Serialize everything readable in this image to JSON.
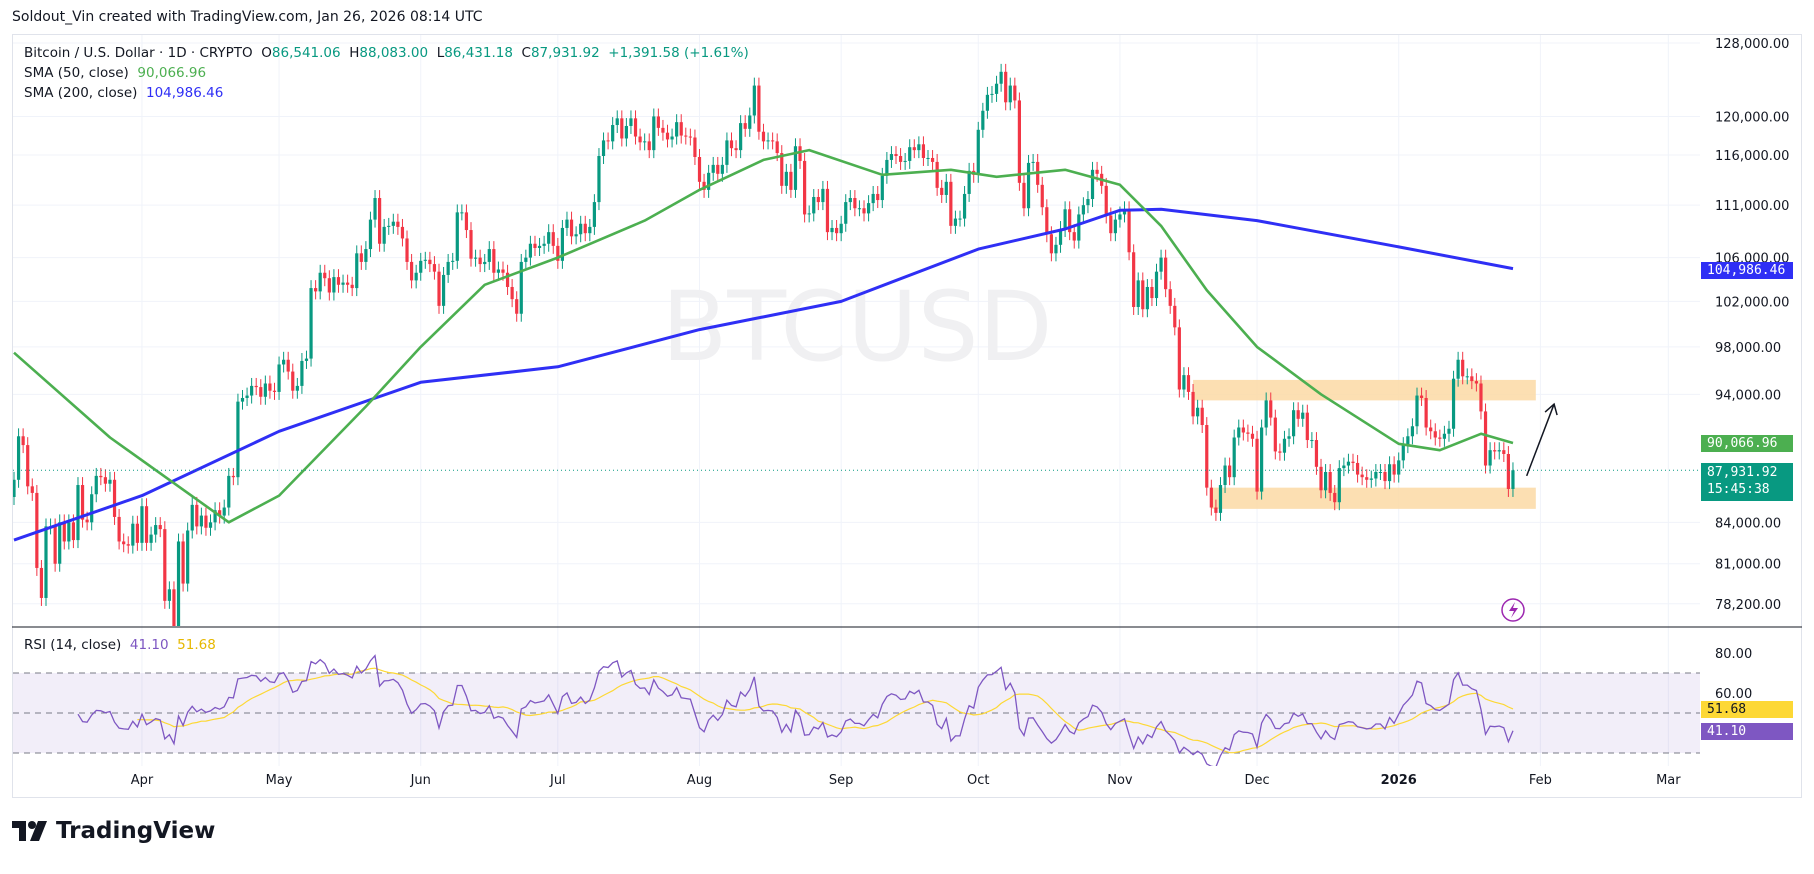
{
  "credit": "Soldout_Vin created with TradingView.com, Jan 26, 2026 08:14 UTC",
  "legend": {
    "symbol": "Bitcoin / U.S. Dollar · 1D · CRYPTO",
    "o_label": "O",
    "o": "86,541.06",
    "h_label": "H",
    "h": "88,083.00",
    "l_label": "L",
    "l": "86,431.18",
    "c_label": "C",
    "c": "87,931.92",
    "change": "+1,391.58 (+1.61%)",
    "sma50_label": "SMA (50, close)",
    "sma50": "90,066.96",
    "sma200_label": "SMA (200, close)",
    "sma200": "104,986.46",
    "rsi_label": "RSI (14, close)",
    "rsi": "41.10",
    "rsi_ma": "51.68"
  },
  "watermark": "BTCUSD",
  "tags": {
    "sma200": "104,986.46",
    "sma50": "90,066.96",
    "last_price": "87,931.92",
    "countdown": "15:45:38",
    "rsi_ma": "51.68",
    "rsi": "41.10"
  },
  "colors": {
    "up": "#089981",
    "down": "#f23645",
    "sma50": "#4caf50",
    "sma200": "#2f2ff5",
    "rsi": "#7e57c2",
    "rsi_ma": "#fdd835",
    "zone": "#fcd9a5"
  },
  "logo": "TradingView",
  "chart_data": {
    "type": "candlestick",
    "scale": "log",
    "start_date": "2025-03-04",
    "ylim": [
      78200,
      128000
    ],
    "price_ticks": [
      "128,000.00",
      "120,000.00",
      "116,000.00",
      "111,000.00",
      "106,000.00",
      "102,000.00",
      "98,000.00",
      "94,000.00",
      "84,000.00",
      "81,000.00",
      "78,200.00"
    ],
    "rsi_ticks": [
      "80.00",
      "60.00"
    ],
    "rsi_bands": [
      30,
      50,
      70
    ],
    "time_axis": [
      {
        "label": "Apr",
        "date": "2025-04-01"
      },
      {
        "label": "May",
        "date": "2025-05-01"
      },
      {
        "label": "Jun",
        "date": "2025-06-01"
      },
      {
        "label": "Jul",
        "date": "2025-07-01"
      },
      {
        "label": "Aug",
        "date": "2025-08-01"
      },
      {
        "label": "Sep",
        "date": "2025-09-01"
      },
      {
        "label": "Oct",
        "date": "2025-10-01"
      },
      {
        "label": "Nov",
        "date": "2025-11-01"
      },
      {
        "label": "Dec",
        "date": "2025-12-01"
      },
      {
        "label": "2026",
        "date": "2026-01-01"
      },
      {
        "label": "Feb",
        "date": "2026-02-01"
      },
      {
        "label": "Mar",
        "date": "2026-03-01"
      }
    ],
    "close_k": [
      87.2,
      90.6,
      89.9,
      86.7,
      86.2,
      80.7,
      78.6,
      83.7,
      83.7,
      81.0,
      84.0,
      82.6,
      84.0,
      82.7,
      86.8,
      84.2,
      84.0,
      86.1,
      87.5,
      87.4,
      86.9,
      87.2,
      84.4,
      82.6,
      82.4,
      82.3,
      83.9,
      82.5,
      85.2,
      82.5,
      83.1,
      83.8,
      83.5,
      78.4,
      79.2,
      76.3,
      82.6,
      79.6,
      83.4,
      85.3,
      83.7,
      84.5,
      83.6,
      84.0,
      84.9,
      84.5,
      85.1,
      87.5,
      87.4,
      93.4,
      93.7,
      93.9,
      94.7,
      94.6,
      93.8,
      94.9,
      94.3,
      94.2,
      96.5,
      96.9,
      95.9,
      94.3,
      94.7,
      96.8,
      97.0,
      103.2,
      102.9,
      104.6,
      104.1,
      102.8,
      104.2,
      103.5,
      103.7,
      103.5,
      103.2,
      106.4,
      105.6,
      106.8,
      109.6,
      111.7,
      107.3,
      108.9,
      109.0,
      109.4,
      108.9,
      107.8,
      105.6,
      103.9,
      104.6,
      105.7,
      105.8,
      105.4,
      104.7,
      101.6,
      104.4,
      105.6,
      105.7,
      110.3,
      110.3,
      108.6,
      105.9,
      106.0,
      105.4,
      105.6,
      106.8,
      104.6,
      104.9,
      104.6,
      103.3,
      102.2,
      100.9,
      105.6,
      106.0,
      107.3,
      106.9,
      107.1,
      107.3,
      108.4,
      107.1,
      105.7,
      108.8,
      109.6,
      108.0,
      108.2,
      109.2,
      108.3,
      108.9,
      111.3,
      115.9,
      117.5,
      117.4,
      119.1,
      119.8,
      117.7,
      119.0,
      119.8,
      117.9,
      117.3,
      117.4,
      116.5,
      120.0,
      118.8,
      118.3,
      117.6,
      117.9,
      119.4,
      118.0,
      117.9,
      117.8,
      115.8,
      113.3,
      112.5,
      114.2,
      115.0,
      114.1,
      115.0,
      117.5,
      116.7,
      116.5,
      119.3,
      118.7,
      120.1,
      123.3,
      118.4,
      117.4,
      117.5,
      117.4,
      116.2,
      112.9,
      114.3,
      112.5,
      116.9,
      115.4,
      110.1,
      110.2,
      111.8,
      111.3,
      112.6,
      108.4,
      108.8,
      108.3,
      109.2,
      111.3,
      111.7,
      110.7,
      110.7,
      110.2,
      111.2,
      112.1,
      111.5,
      113.9,
      115.5,
      116.1,
      115.9,
      115.3,
      115.4,
      116.8,
      116.5,
      117.1,
      115.7,
      115.7,
      115.3,
      112.7,
      112.0,
      113.3,
      109.0,
      109.7,
      109.7,
      112.1,
      114.4,
      114.0,
      118.6,
      120.6,
      122.3,
      122.4,
      123.5,
      124.8,
      121.5,
      123.3,
      121.7,
      113.2,
      110.7,
      115.2,
      115.3,
      113.0,
      110.8,
      108.2,
      106.4,
      107.2,
      108.7,
      110.6,
      108.4,
      107.6,
      110.1,
      111.0,
      111.6,
      114.5,
      114.1,
      112.9,
      110.0,
      108.3,
      109.6,
      110.1,
      110.6,
      106.5,
      101.5,
      103.9,
      101.3,
      103.3,
      102.3,
      104.7,
      106.0,
      103.1,
      101.6,
      99.7,
      94.4,
      95.6,
      94.2,
      92.2,
      92.9,
      91.5,
      86.6,
      85.1,
      84.7,
      86.8,
      88.3,
      87.4,
      90.5,
      91.3,
      90.9,
      90.8,
      90.4,
      86.3,
      91.3,
      93.5,
      92.1,
      89.4,
      89.3,
      90.4,
      90.6,
      92.7,
      92.0,
      92.5,
      90.3,
      90.3,
      88.2,
      86.4,
      87.8,
      86.2,
      85.5,
      88.1,
      88.3,
      88.6,
      88.5,
      87.6,
      87.4,
      87.2,
      87.3,
      87.8,
      87.8,
      87.1,
      88.4,
      87.6,
      88.7,
      89.9,
      90.6,
      91.4,
      93.9,
      93.7,
      91.3,
      91.0,
      90.5,
      90.4,
      90.8,
      91.2,
      95.3,
      96.9,
      95.5,
      95.5,
      95.1,
      94.9,
      92.6,
      88.3,
      89.5,
      89.4,
      89.5,
      89.2,
      86.5,
      87.932
    ],
    "sma50": [
      [
        "2025-03-04",
        97.5
      ],
      [
        "2025-03-25",
        90.5
      ],
      [
        "2025-04-20",
        84.0
      ],
      [
        "2025-05-01",
        86.0
      ],
      [
        "2025-05-20",
        93.0
      ],
      [
        "2025-06-01",
        98.0
      ],
      [
        "2025-06-15",
        103.5
      ],
      [
        "2025-07-01",
        106.0
      ],
      [
        "2025-07-20",
        109.5
      ],
      [
        "2025-08-01",
        112.5
      ],
      [
        "2025-08-15",
        115.5
      ],
      [
        "2025-08-25",
        116.5
      ],
      [
        "2025-09-10",
        114.0
      ],
      [
        "2025-09-25",
        114.5
      ],
      [
        "2025-10-05",
        113.8
      ],
      [
        "2025-10-20",
        114.5
      ],
      [
        "2025-11-01",
        113.0
      ],
      [
        "2025-11-10",
        109.0
      ],
      [
        "2025-11-20",
        103.0
      ],
      [
        "2025-12-01",
        98.0
      ],
      [
        "2025-12-15",
        94.0
      ],
      [
        "2026-01-01",
        90.0
      ],
      [
        "2026-01-10",
        89.5
      ],
      [
        "2026-01-19",
        90.8
      ],
      [
        "2026-01-26",
        90.067
      ]
    ],
    "sma200": [
      [
        "2025-03-04",
        82.7
      ],
      [
        "2025-04-01",
        86.0
      ],
      [
        "2025-05-01",
        91.0
      ],
      [
        "2025-06-01",
        95.0
      ],
      [
        "2025-07-01",
        96.3
      ],
      [
        "2025-08-01",
        99.5
      ],
      [
        "2025-09-01",
        102.0
      ],
      [
        "2025-10-01",
        106.8
      ],
      [
        "2025-10-20",
        108.7
      ],
      [
        "2025-11-01",
        110.5
      ],
      [
        "2025-11-10",
        110.6
      ],
      [
        "2025-12-01",
        109.5
      ],
      [
        "2026-01-01",
        107.0
      ],
      [
        "2026-01-26",
        104.986
      ]
    ],
    "zones": [
      {
        "from": "2025-11-17",
        "to": "2026-01-31",
        "low": 93.5,
        "high": 95.2
      },
      {
        "from": "2025-11-21",
        "to": "2026-01-31",
        "low": 85.0,
        "high": 86.6
      }
    ],
    "arrow": {
      "from": [
        "2026-01-29",
        87.5
      ],
      "to": [
        "2026-02-04",
        93.2
      ]
    }
  }
}
